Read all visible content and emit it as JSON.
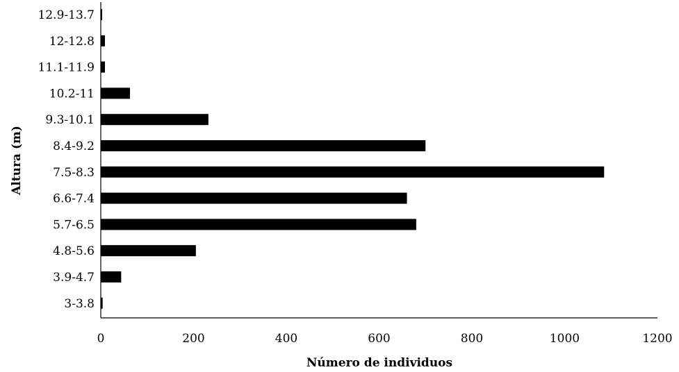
{
  "chart_data": {
    "type": "bar",
    "orientation": "horizontal",
    "title": "",
    "xlabel": "Número de individuos",
    "ylabel": "Altura (m)",
    "xlim": [
      0,
      1200
    ],
    "xticks": [
      "0",
      "200",
      "400",
      "600",
      "800",
      "1000",
      "1200"
    ],
    "categories": [
      "3-3.8",
      "3.9-4.7",
      "4.8-5.6",
      "5.7-6.5",
      "6.6-7.4",
      "7.5-8.3",
      "8.4-9.2",
      "9.3-10.1",
      "10.2-11",
      "11.1-11.9",
      "12-12.8",
      "12.9-13.7"
    ],
    "values": [
      4,
      44,
      205,
      680,
      660,
      1085,
      700,
      232,
      63,
      9,
      9,
      3
    ],
    "grid": false,
    "legend": "none",
    "bar_color": "#000000",
    "axis_color": "#000000"
  }
}
